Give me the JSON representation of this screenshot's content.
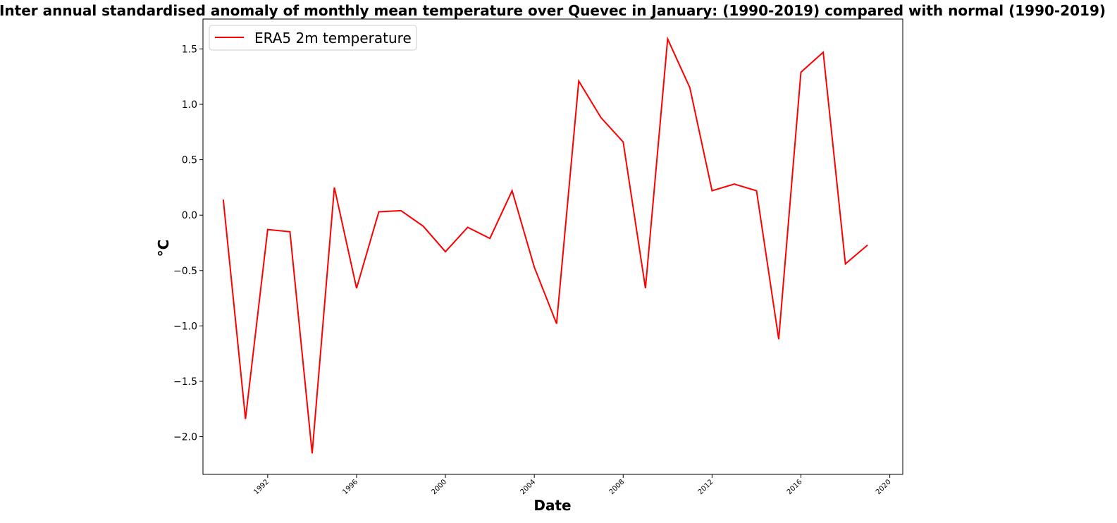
{
  "chart_data": {
    "type": "line",
    "title": "Inter annual standardised anomaly of monthly mean temperature over Quevec in January: (1990-2019) compared with normal (1990-2019)",
    "xlabel": "Date",
    "ylabel": "°C",
    "xlim": [
      "1989-02-01",
      "2020-08-01"
    ],
    "ylim": [
      -2.34,
      1.77
    ],
    "xticks": [
      "1992",
      "1996",
      "2000",
      "2004",
      "2008",
      "2012",
      "2016",
      "2020"
    ],
    "yticks": [
      "-2.0",
      "-1.5",
      "-1.0",
      "-0.5",
      "0.0",
      "0.5",
      "1.0",
      "1.5"
    ],
    "grid": false,
    "legend": {
      "position": "upper-left"
    },
    "series": [
      {
        "name": "ERA5 2m temperature",
        "color": "#ff0000",
        "x": [
          "1990-01-01",
          "1991-01-01",
          "1992-01-01",
          "1993-01-01",
          "1994-01-01",
          "1995-01-01",
          "1996-01-01",
          "1997-01-01",
          "1998-01-01",
          "1999-01-01",
          "2000-01-01",
          "2001-01-01",
          "2002-01-01",
          "2003-01-01",
          "2004-01-01",
          "2005-01-01",
          "2006-01-01",
          "2007-01-01",
          "2008-01-01",
          "2009-01-01",
          "2010-01-01",
          "2011-01-01",
          "2012-01-01",
          "2013-01-01",
          "2014-01-01",
          "2015-01-01",
          "2016-01-01",
          "2017-01-01",
          "2018-01-01",
          "2019-01-01"
        ],
        "values": [
          0.14,
          -1.84,
          -0.13,
          -0.15,
          -2.15,
          0.25,
          -0.66,
          0.03,
          0.04,
          -0.1,
          -0.33,
          -0.11,
          -0.21,
          0.22,
          -0.47,
          -0.98,
          1.21,
          0.88,
          0.66,
          -0.66,
          1.59,
          1.15,
          0.22,
          0.28,
          0.22,
          -1.12,
          1.29,
          1.47,
          -0.44,
          -0.27
        ]
      }
    ]
  }
}
